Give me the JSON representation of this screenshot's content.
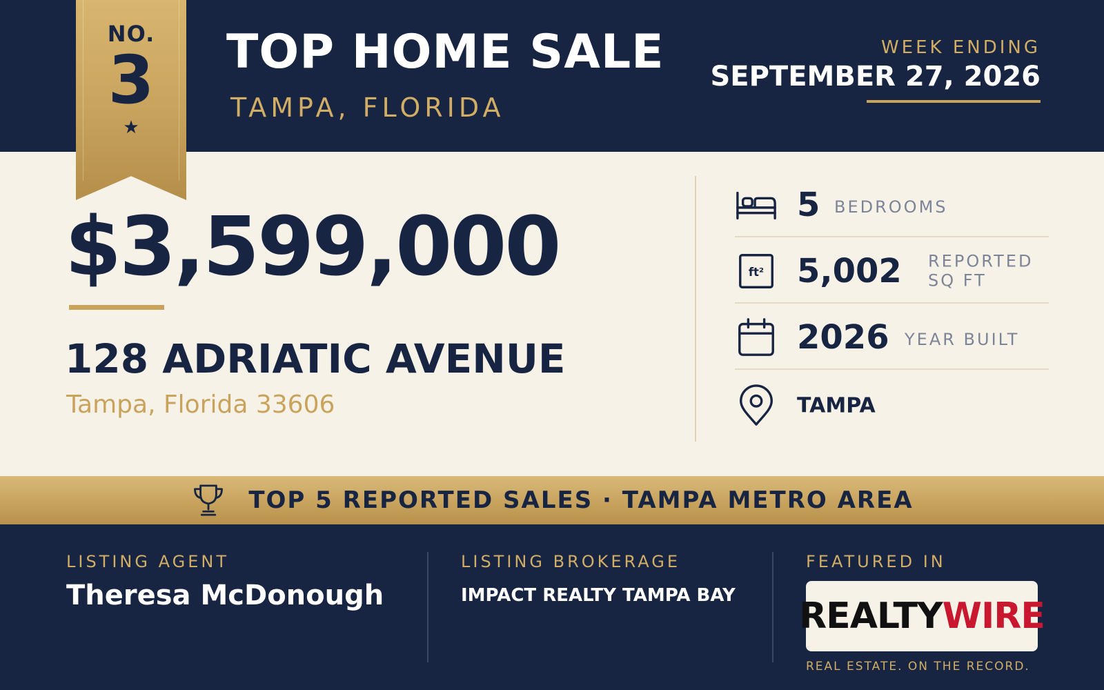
{
  "ribbon": {
    "prefix": "NO.",
    "rank": "3",
    "star": "★"
  },
  "header": {
    "title": "TOP HOME SALE",
    "subtitle": "TAMPA, FLORIDA",
    "week_label": "WEEK ENDING",
    "week_date": "SEPTEMBER 27, 2026"
  },
  "sale": {
    "price": "$3,599,000",
    "address": "128 ADRIATIC AVENUE",
    "city_state_zip": "Tampa, Florida 33606"
  },
  "stats": [
    {
      "icon": "bed-icon",
      "value": "5",
      "label": "BEDROOMS"
    },
    {
      "icon": "square-feet-icon",
      "value": "5,002",
      "label": "REPORTED\nSQ FT"
    },
    {
      "icon": "calendar-icon",
      "value": "2026",
      "label": "YEAR BUILT"
    },
    {
      "icon": "location-pin-icon",
      "value": "TAMPA"
    }
  ],
  "banner": {
    "icon": "trophy-icon",
    "text": "TOP 5 REPORTED SALES · TAMPA METRO AREA"
  },
  "footer": {
    "agent_label": "LISTING AGENT",
    "agent_name": "Theresa McDonough",
    "brokerage_label": "LISTING BROKERAGE",
    "brokerage_name": "IMPACT REALTY TAMPA BAY",
    "featured_label": "FEATURED IN",
    "logo_part1": "REALTY",
    "logo_part2": "WIRE",
    "tagline": "REAL ESTATE. ON THE RECORD."
  },
  "colors": {
    "navy": "#172542",
    "gold": "#c9a35c",
    "cream": "#f7f2e8",
    "logo_red": "#c8172e"
  }
}
